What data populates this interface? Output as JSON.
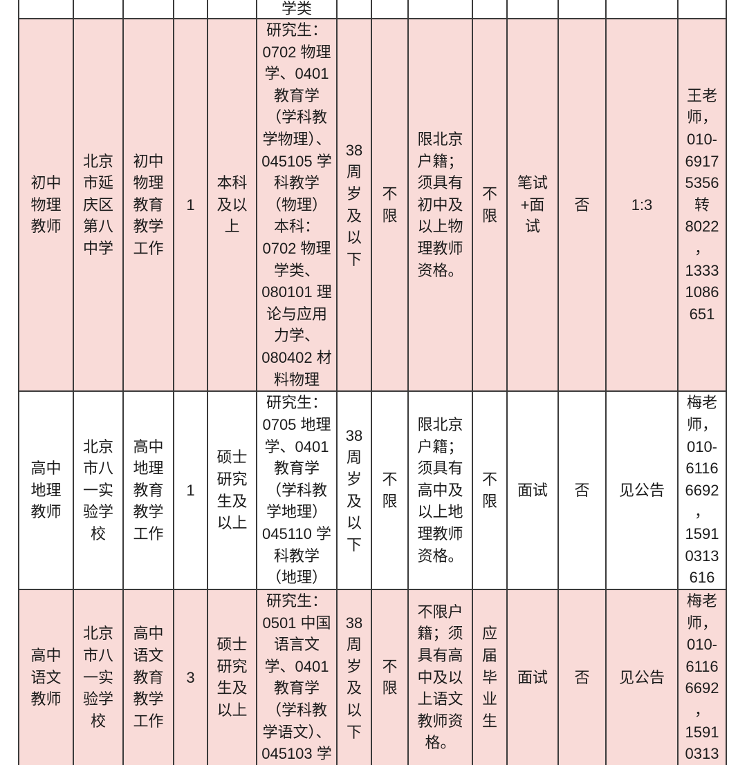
{
  "colors": {
    "row_pink": "#f9dbd8",
    "row_white": "#ffffff",
    "border": "#3b3b3b",
    "text": "#1c1c1c"
  },
  "table": {
    "column_keys": [
      "position",
      "school",
      "duty",
      "openings",
      "education",
      "major",
      "age_limit",
      "gender_limit",
      "other_requirements",
      "candidate_source",
      "exam_type",
      "fee_or_flag",
      "ratio",
      "contact"
    ],
    "rows": [
      {
        "shade": "white",
        "cells": {
          "position": "",
          "school": "",
          "duty": "",
          "openings": "",
          "education": "",
          "major": "学类",
          "age_limit": "",
          "gender_limit": "",
          "other_requirements": "",
          "candidate_source": "",
          "exam_type": "",
          "fee_or_flag": "",
          "ratio": "",
          "contact": ""
        }
      },
      {
        "shade": "pink",
        "cells": {
          "position": "初中\n物理\n教师",
          "school": "北京\n市延\n庆区\n第八\n中学",
          "duty": "初中\n物理\n教育\n教学\n工作",
          "openings": "1",
          "education": "本科\n及以\n上",
          "major": "研究生：\n0702 物理\n学、0401\n教育学\n（学科教\n学物理）、\n045105 学\n科教学\n（物理）\n本科：\n0702 物理\n学类、\n080101 理\n论与应用\n力学、\n080402 材\n料物理",
          "age_limit": "38\n周\n岁\n及\n以\n下",
          "gender_limit": "不\n限",
          "other_requirements": "限北京\n户籍；\n须具有\n初中及\n以上物\n理教师\n资格。",
          "candidate_source": "不\n限",
          "exam_type": "笔试\n+面\n试",
          "fee_or_flag": "否",
          "ratio": "1:3",
          "contact": "王老\n师，\n010-\n6917\n5356\n转\n8022\n，\n1333\n1086\n651"
        }
      },
      {
        "shade": "white",
        "cells": {
          "position": "高中\n地理\n教师",
          "school": "北京\n市八\n一实\n验学\n校",
          "duty": "高中\n地理\n教育\n教学\n工作",
          "openings": "1",
          "education": "硕士\n研究\n生及\n以上",
          "major": "研究生：\n0705 地理\n学、0401\n教育学\n（学科教\n学地理）\n045110 学\n科教学\n（地理）",
          "age_limit": "38\n周\n岁\n及\n以\n下",
          "gender_limit": "不\n限",
          "other_requirements": "限北京\n户籍；\n须具有\n高中及\n以上地\n理教师\n资格。",
          "candidate_source": "不\n限",
          "exam_type": "面试",
          "fee_or_flag": "否",
          "ratio": "见公告",
          "contact": "梅老\n师，\n010-\n6116\n6692\n，\n1591\n0313\n616"
        }
      },
      {
        "shade": "pink",
        "cells": {
          "position": "高中\n语文\n教师",
          "school": "北京\n市八\n一实\n验学\n校",
          "duty": "高中\n语文\n教育\n教学\n工作",
          "openings": "3",
          "education": "硕士\n研究\n生及\n以上",
          "major": "研究生：\n0501 中国\n语言文\n学、0401\n教育学\n（学科教\n学语文）、\n045103 学",
          "age_limit": "38\n周\n岁\n及\n以\n下",
          "gender_limit": "不\n限",
          "other_requirements": "不限户\n籍；须\n具有高\n中及以\n上语文\n教师资\n格。",
          "candidate_source": "应\n届\n毕\n业\n生",
          "exam_type": "面试",
          "fee_or_flag": "否",
          "ratio": "见公告",
          "contact": "梅老\n师，\n010-\n6116\n6692\n，\n1591\n0313"
        }
      }
    ]
  }
}
